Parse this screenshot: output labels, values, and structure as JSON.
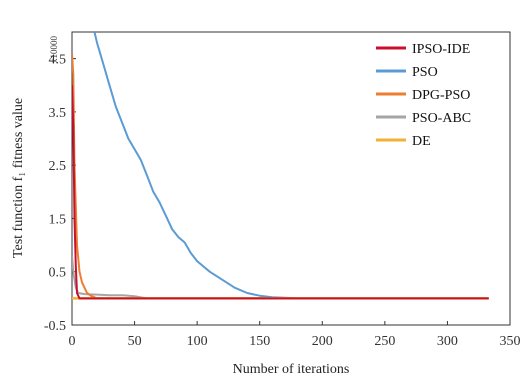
{
  "chart_data": {
    "type": "line",
    "title": "",
    "xlabel": "Number of iterations",
    "ylabel": "Test function f₁ fitness value",
    "y_multiplier": "x10000",
    "xlim": [
      0,
      350
    ],
    "ylim": [
      -0.5,
      5
    ],
    "x_ticks": [
      0,
      50,
      100,
      150,
      200,
      250,
      300,
      350
    ],
    "y_ticks": [
      -0.5,
      0.5,
      1.5,
      2.5,
      3.5,
      4.5
    ],
    "grid": false,
    "legend_position": "top-right",
    "series": [
      {
        "name": "IPSO-IDE",
        "color": "#c8102e",
        "x": [
          0,
          1,
          2,
          3,
          4,
          6,
          333
        ],
        "y": [
          4.0,
          3.2,
          1.5,
          0.6,
          0.1,
          0.0,
          0.0
        ]
      },
      {
        "name": "PSO",
        "color": "#5b9bd5",
        "x": [
          18,
          20,
          25,
          30,
          35,
          40,
          45,
          50,
          55,
          60,
          65,
          70,
          75,
          80,
          85,
          90,
          95,
          100,
          110,
          120,
          130,
          140,
          150,
          160,
          170,
          180,
          200,
          250,
          300,
          333
        ],
        "y": [
          5.0,
          4.8,
          4.4,
          4.0,
          3.6,
          3.3,
          3.0,
          2.8,
          2.6,
          2.3,
          2.0,
          1.8,
          1.55,
          1.3,
          1.15,
          1.05,
          0.85,
          0.7,
          0.5,
          0.35,
          0.2,
          0.1,
          0.05,
          0.02,
          0.01,
          0.0,
          0.0,
          0.0,
          0.0,
          0.0
        ]
      },
      {
        "name": "DPG-PSO",
        "color": "#ed7d31",
        "x": [
          0,
          1,
          2,
          4,
          6,
          8,
          10,
          12,
          15,
          20,
          333
        ],
        "y": [
          4.6,
          4.2,
          2.5,
          1.0,
          0.5,
          0.3,
          0.2,
          0.1,
          0.05,
          0.0,
          0.0
        ]
      },
      {
        "name": "PSO-ABC",
        "color": "#a5a5a5",
        "x": [
          0,
          1,
          3,
          5,
          10,
          20,
          30,
          40,
          50,
          55,
          60,
          333
        ],
        "y": [
          0.8,
          0.5,
          0.2,
          0.1,
          0.08,
          0.07,
          0.06,
          0.06,
          0.04,
          0.02,
          0.0,
          0.0
        ]
      },
      {
        "name": "DE",
        "color": "#f2b134",
        "x": [
          0,
          333
        ],
        "y": [
          0.0,
          0.0
        ]
      }
    ]
  }
}
